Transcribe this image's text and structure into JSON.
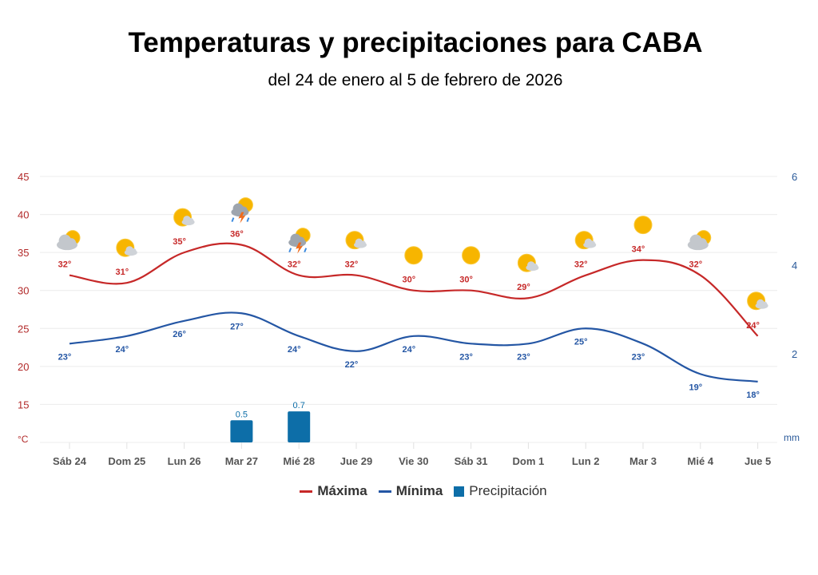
{
  "chart_data": {
    "type": "line",
    "title": "Temperaturas y precipitaciones para CABA",
    "subtitle": "del 24 de enero al 5 de febrero de 2026",
    "categories": [
      "Sáb 24",
      "Dom 25",
      "Lun 26",
      "Mar 27",
      "Mié 28",
      "Jue 29",
      "Vie 30",
      "Sáb 31",
      "Dom 1",
      "Lun 2",
      "Mar 3",
      "Mié 4",
      "Jue 5"
    ],
    "y_left": {
      "unit": "°C",
      "ticks": [
        15,
        20,
        25,
        30,
        35,
        40,
        45
      ],
      "range": [
        10,
        45
      ],
      "color": "#b22a2a"
    },
    "y_right": {
      "unit": "mm",
      "ticks": [
        2,
        4,
        6
      ],
      "range": [
        0,
        6
      ],
      "color": "#2a5a9a"
    },
    "grid": true,
    "legend_position": "bottom",
    "series": [
      {
        "name": "Máxima",
        "type": "line",
        "axis": "left",
        "color": "#c62828",
        "values": [
          32,
          31,
          35,
          36,
          32,
          32,
          30,
          30,
          29,
          32,
          34,
          32,
          24
        ],
        "labels": [
          "32°",
          "31°",
          "35°",
          "36°",
          "32°",
          "32°",
          "30°",
          "30°",
          "29°",
          "32°",
          "34°",
          "32°",
          "24°"
        ]
      },
      {
        "name": "Mínima",
        "type": "line",
        "axis": "left",
        "color": "#2456a4",
        "values": [
          23,
          24,
          26,
          27,
          24,
          22,
          24,
          23,
          23,
          25,
          23,
          19,
          18
        ],
        "labels": [
          "23°",
          "24°",
          "26°",
          "27°",
          "24°",
          "22°",
          "24°",
          "23°",
          "23°",
          "25°",
          "23°",
          "19°",
          "18°"
        ]
      },
      {
        "name": "Precipitación",
        "type": "bar",
        "axis": "right",
        "color": "#0d6ea8",
        "values": [
          0,
          0,
          0,
          0.5,
          0.7,
          0,
          0,
          0,
          0,
          0,
          0,
          0,
          0
        ],
        "labels": [
          "",
          "",
          "",
          "0.5",
          "0.7",
          "",
          "",
          "",
          "",
          "",
          "",
          "",
          ""
        ]
      }
    ],
    "icons": [
      "cloudy-sun-icon",
      "partly-sunny-icon",
      "partly-sunny-icon",
      "thunderstorm-icon",
      "thunderstorm-icon",
      "partly-sunny-icon",
      "sunny-icon",
      "sunny-icon",
      "partly-sunny-icon",
      "partly-sunny-icon",
      "sunny-icon",
      "cloudy-sun-icon",
      "partly-sunny-icon"
    ]
  }
}
